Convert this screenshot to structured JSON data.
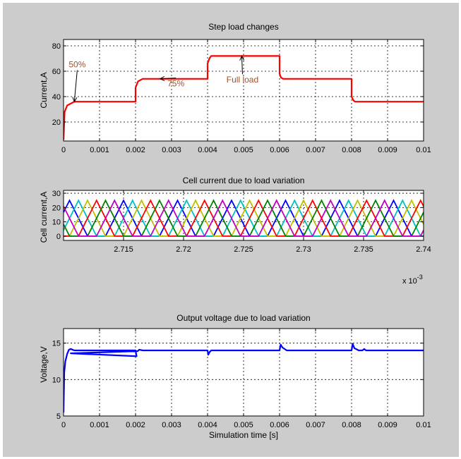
{
  "chart_data": [
    {
      "type": "line",
      "title": "Step load changes",
      "xlabel": "",
      "ylabel": "Current,A",
      "xlim": [
        0,
        0.01
      ],
      "ylim": [
        5,
        85
      ],
      "xticks": [
        0,
        0.001,
        0.002,
        0.003,
        0.004,
        0.005,
        0.006,
        0.007,
        0.008,
        0.009,
        0.01
      ],
      "xtick_labels": [
        "0",
        "0.001",
        "0.002",
        "0.003",
        "0.004",
        "0.005",
        "0.006",
        "0.007",
        "0.008",
        "0.009",
        "0.01"
      ],
      "yticks": [
        20,
        40,
        60,
        80
      ],
      "ytick_labels": [
        "20",
        "40",
        "60",
        "80"
      ],
      "grid": true,
      "series": [
        {
          "color": "#ff0000",
          "x": [
            0,
            3e-05,
            0.0001,
            0.0003,
            0.002,
            0.002,
            0.00207,
            0.0022,
            0.004,
            0.004,
            0.00405,
            0.0041,
            0.006,
            0.006,
            0.00604,
            0.0061,
            0.008,
            0.008,
            0.00805,
            0.0081,
            0.01
          ],
          "y": [
            6,
            28,
            33,
            36,
            36,
            47,
            52,
            54,
            54,
            66,
            70,
            72,
            72,
            58,
            55,
            54,
            54,
            40,
            37,
            36,
            36
          ]
        }
      ],
      "annotations": [
        {
          "text": "50%",
          "x": 0.00038,
          "y": 63,
          "color": "#a0522d",
          "arrow_to": [
            0.0003,
            36
          ]
        },
        {
          "text": "75%",
          "x": 0.00312,
          "y": 48,
          "color": "#a0522d",
          "arrow_to": [
            0.00268,
            54
          ]
        },
        {
          "text": "Full load",
          "x": 0.00497,
          "y": 51,
          "color": "#a0522d",
          "arrow_to": [
            0.00495,
            72
          ]
        }
      ]
    },
    {
      "type": "line",
      "title": "Cell current due to load variation",
      "xlabel": "",
      "ylabel": "Cell current,A",
      "xlim": [
        0.00271,
        0.00274
      ],
      "ylim": [
        -3,
        32
      ],
      "xticks": [
        0.002715,
        0.00272,
        0.002725,
        0.00273,
        0.002735,
        0.00274
      ],
      "xtick_labels": [
        "2.715",
        "2.72",
        "2.725",
        "2.73",
        "2.735",
        "2.74"
      ],
      "x_multiplier": "x 10",
      "x_multiplier_exp": "-3",
      "yticks": [
        0,
        10,
        20,
        30
      ],
      "ytick_labels": [
        "0",
        "10",
        "20",
        "30"
      ],
      "grid": true,
      "period": 4.5e-06,
      "peak": 25,
      "phases": [
        {
          "color": "#0000ff",
          "offset": 0.0
        },
        {
          "color": "#00bfbf",
          "offset": 7.5e-07
        },
        {
          "color": "#bfbf00",
          "offset": 1.5e-06
        },
        {
          "color": "#ff0000",
          "offset": 2.25e-06
        },
        {
          "color": "#008000",
          "offset": 3e-06
        },
        {
          "color": "#bf00bf",
          "offset": 3.75e-06
        }
      ]
    },
    {
      "type": "line",
      "title": "Output voltage due to load variation",
      "xlabel": "Simulation time [s]",
      "ylabel": "Voltage,V",
      "xlim": [
        0,
        0.01
      ],
      "ylim": [
        5,
        17
      ],
      "xticks": [
        0,
        0.001,
        0.002,
        0.003,
        0.004,
        0.005,
        0.006,
        0.007,
        0.008,
        0.009,
        0.01
      ],
      "xtick_labels": [
        "0",
        "0.001",
        "0.002",
        "0.003",
        "0.004",
        "0.005",
        "0.006",
        "0.007",
        "0.008",
        "0.009",
        "0.01"
      ],
      "yticks": [
        5,
        10,
        15
      ],
      "ytick_labels": [
        "5",
        "10",
        "15"
      ],
      "grid": true,
      "series": [
        {
          "color": "#0000ff",
          "x": [
            0,
            2e-05,
            5e-05,
            0.0001,
            0.00015,
            0.0002,
            0.0003,
            0.002,
            0.00203,
            0.0002,
            0.00206,
            0.0021,
            0.0022,
            0.004,
            0.00402,
            0.00406,
            0.0041,
            0.006,
            0.00603,
            0.00608,
            0.0062,
            0.008,
            0.00803,
            0.00808,
            0.0082,
            0.0083,
            0.00835,
            0.0084,
            0.01
          ],
          "y": [
            5.5,
            11,
            12.5,
            13.5,
            14.1,
            14.2,
            14.0,
            14.0,
            13.2,
            13.6,
            13.9,
            14.1,
            14.0,
            14.0,
            13.4,
            13.8,
            14.0,
            14.0,
            14.8,
            14.4,
            14.0,
            14.0,
            14.9,
            14.3,
            14.0,
            14.0,
            14.2,
            14.0,
            14.0
          ]
        }
      ]
    }
  ]
}
